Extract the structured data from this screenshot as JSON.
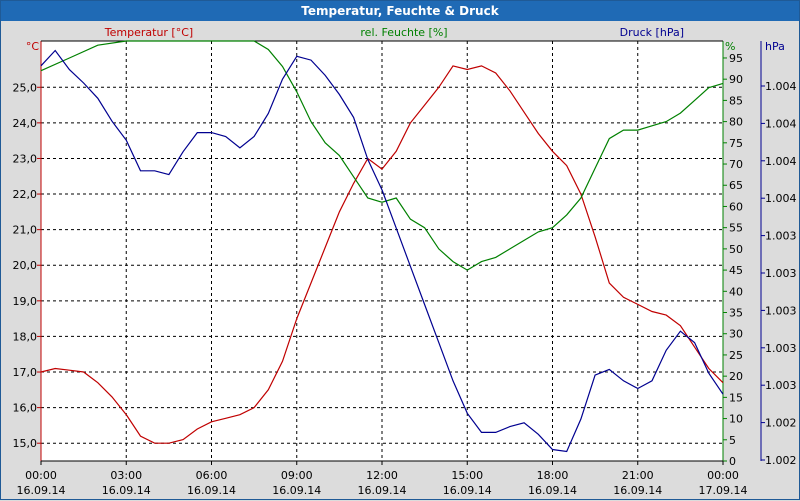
{
  "window": {
    "title": "Temperatur, Feuchte & Druck"
  },
  "colors": {
    "temperature": "#c00000",
    "humidity": "#008000",
    "pressure": "#000090",
    "plot_bg": "#ffffff",
    "grid": "#000000"
  },
  "chart_data": {
    "type": "line",
    "title": "Temperatur, Feuchte & Druck",
    "grid": true,
    "x_ticks": [
      {
        "time": "00:00",
        "date": "16.09.14"
      },
      {
        "time": "03:00",
        "date": "16.09.14"
      },
      {
        "time": "06:00",
        "date": "16.09.14"
      },
      {
        "time": "09:00",
        "date": "16.09.14"
      },
      {
        "time": "12:00",
        "date": "16.09.14"
      },
      {
        "time": "15:00",
        "date": "16.09.14"
      },
      {
        "time": "18:00",
        "date": "16.09.14"
      },
      {
        "time": "21:00",
        "date": "16.09.14"
      },
      {
        "time": "00:00",
        "date": "17.09.14"
      }
    ],
    "x_range_hours": [
      0,
      24
    ],
    "axes": {
      "left": {
        "label": "Temperatur [°C]",
        "unit": "°C",
        "range": [
          14.5,
          26.3
        ],
        "ticks": [
          "15,0",
          "16,0",
          "17,0",
          "18,0",
          "19,0",
          "20,0",
          "21,0",
          "22,0",
          "23,0",
          "24,0",
          "25,0"
        ]
      },
      "right1": {
        "label": "rel. Feuchte [%]",
        "unit": "%",
        "range": [
          0,
          99
        ],
        "ticks": [
          "0",
          "5",
          "10",
          "15",
          "20",
          "25",
          "30",
          "35",
          "40",
          "45",
          "50",
          "55",
          "60",
          "65",
          "70",
          "75",
          "80",
          "85",
          "90",
          "95"
        ]
      },
      "right2": {
        "label": "Druck [hPa]",
        "unit": "hPa",
        "ticks": [
          "1.002",
          "1.002",
          "1.003",
          "1.003",
          "1.003",
          "1.003",
          "1.003",
          "1.004",
          "1.004",
          "1.004",
          "1.004"
        ]
      }
    },
    "series": [
      {
        "name": "Temperatur [°C]",
        "axis": "left",
        "points": [
          [
            0,
            17.0
          ],
          [
            0.5,
            17.1
          ],
          [
            1,
            17.05
          ],
          [
            1.5,
            17.0
          ],
          [
            2,
            16.7
          ],
          [
            2.5,
            16.3
          ],
          [
            3,
            15.8
          ],
          [
            3.5,
            15.2
          ],
          [
            4,
            15.0
          ],
          [
            4.5,
            15.0
          ],
          [
            5,
            15.1
          ],
          [
            5.5,
            15.4
          ],
          [
            6,
            15.6
          ],
          [
            6.5,
            15.7
          ],
          [
            7,
            15.8
          ],
          [
            7.5,
            16.0
          ],
          [
            8,
            16.5
          ],
          [
            8.5,
            17.3
          ],
          [
            9,
            18.5
          ],
          [
            9.5,
            19.5
          ],
          [
            10,
            20.5
          ],
          [
            10.5,
            21.5
          ],
          [
            11,
            22.3
          ],
          [
            11.5,
            23.0
          ],
          [
            12,
            22.7
          ],
          [
            12.5,
            23.2
          ],
          [
            13,
            24.0
          ],
          [
            13.5,
            24.5
          ],
          [
            14,
            25.0
          ],
          [
            14.5,
            25.6
          ],
          [
            15,
            25.5
          ],
          [
            15.5,
            25.6
          ],
          [
            16,
            25.4
          ],
          [
            16.5,
            24.9
          ],
          [
            17,
            24.3
          ],
          [
            17.5,
            23.7
          ],
          [
            18,
            23.2
          ],
          [
            18.5,
            22.8
          ],
          [
            19,
            22.0
          ],
          [
            19.5,
            20.8
          ],
          [
            20,
            19.5
          ],
          [
            20.5,
            19.1
          ],
          [
            21,
            18.9
          ],
          [
            21.5,
            18.7
          ],
          [
            22,
            18.6
          ],
          [
            22.5,
            18.3
          ],
          [
            23,
            17.7
          ],
          [
            23.5,
            17.1
          ],
          [
            24,
            16.7
          ]
        ]
      },
      {
        "name": "rel. Feuchte [%]",
        "axis": "right1",
        "points": [
          [
            0,
            92
          ],
          [
            1,
            95
          ],
          [
            2,
            98
          ],
          [
            3,
            100
          ],
          [
            4,
            100
          ],
          [
            5,
            100
          ],
          [
            6,
            100
          ],
          [
            7,
            100
          ],
          [
            7.5,
            99
          ],
          [
            8,
            97
          ],
          [
            8.5,
            93
          ],
          [
            9,
            87
          ],
          [
            9.5,
            80
          ],
          [
            10,
            75
          ],
          [
            10.5,
            72
          ],
          [
            11,
            67
          ],
          [
            11.5,
            62
          ],
          [
            12,
            61
          ],
          [
            12.5,
            62
          ],
          [
            13,
            57
          ],
          [
            13.5,
            55
          ],
          [
            14,
            50
          ],
          [
            14.5,
            47
          ],
          [
            15,
            45
          ],
          [
            15.5,
            47
          ],
          [
            16,
            48
          ],
          [
            16.5,
            50
          ],
          [
            17,
            52
          ],
          [
            17.5,
            54
          ],
          [
            18,
            55
          ],
          [
            18.5,
            58
          ],
          [
            19,
            62
          ],
          [
            19.5,
            69
          ],
          [
            20,
            76
          ],
          [
            20.5,
            78
          ],
          [
            21,
            78
          ],
          [
            21.5,
            79
          ],
          [
            22,
            80
          ],
          [
            22.5,
            82
          ],
          [
            23,
            85
          ],
          [
            23.5,
            88
          ],
          [
            24,
            89
          ]
        ]
      },
      {
        "name": "Druck [hPa]",
        "axis": "right2",
        "pressure_scale": [
          1.0025,
          1.0047
        ],
        "points": [
          [
            0,
            1.00457
          ],
          [
            0.5,
            1.00465
          ],
          [
            1,
            1.00455
          ],
          [
            1.5,
            1.00448
          ],
          [
            2,
            1.0044
          ],
          [
            2.5,
            1.00428
          ],
          [
            3,
            1.00418
          ],
          [
            3.5,
            1.00402
          ],
          [
            4,
            1.00402
          ],
          [
            4.5,
            1.004
          ],
          [
            5,
            1.00412
          ],
          [
            5.5,
            1.00422
          ],
          [
            6,
            1.00422
          ],
          [
            6.5,
            1.0042
          ],
          [
            7,
            1.00414
          ],
          [
            7.5,
            1.0042
          ],
          [
            8,
            1.00432
          ],
          [
            8.5,
            1.0045
          ],
          [
            9,
            1.00462
          ],
          [
            9.5,
            1.0046
          ],
          [
            10,
            1.00452
          ],
          [
            10.5,
            1.00442
          ],
          [
            11,
            1.0043
          ],
          [
            11.5,
            1.00408
          ],
          [
            12,
            1.00392
          ],
          [
            12.5,
            1.00372
          ],
          [
            13,
            1.00352
          ],
          [
            13.5,
            1.00332
          ],
          [
            14,
            1.00312
          ],
          [
            14.5,
            1.00292
          ],
          [
            15,
            1.00275
          ],
          [
            15.5,
            1.00265
          ],
          [
            16,
            1.00265
          ],
          [
            16.5,
            1.00268
          ],
          [
            17,
            1.0027
          ],
          [
            17.5,
            1.00264
          ],
          [
            18,
            1.00256
          ],
          [
            18.5,
            1.00255
          ],
          [
            19,
            1.00272
          ],
          [
            19.5,
            1.00295
          ],
          [
            20,
            1.00298
          ],
          [
            20.5,
            1.00292
          ],
          [
            21,
            1.00288
          ],
          [
            21.5,
            1.00292
          ],
          [
            22,
            1.00308
          ],
          [
            22.5,
            1.00318
          ],
          [
            23,
            1.00312
          ],
          [
            23.5,
            1.00296
          ],
          [
            24,
            1.00285
          ]
        ]
      }
    ]
  }
}
